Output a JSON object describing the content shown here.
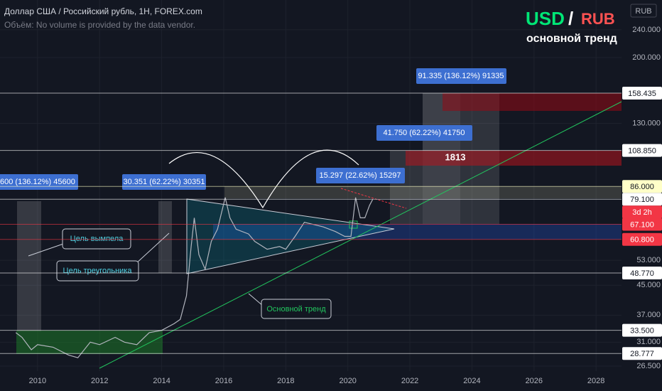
{
  "header": {
    "title": "Доллар США / Российский рубль, 1H, FOREX.com",
    "subtitle": "Объём: No volume is provided by the data vendor.",
    "axis_unit": "RUB"
  },
  "badge": {
    "base": "USD",
    "slash": "/",
    "quote": "RUB",
    "caption": "основной тренд"
  },
  "chart_data": {
    "type": "line",
    "log_scale": true,
    "color": "#b2b5be",
    "x": [
      2009.3,
      2009.5,
      2009.8,
      2010,
      2010.5,
      2011,
      2011.3,
      2011.7,
      2012,
      2012.5,
      2012.8,
      2013.2,
      2013.6,
      2014,
      2014.4,
      2014.6,
      2014.8,
      2014.95,
      2015.05,
      2015.2,
      2015.4,
      2015.6,
      2015.8,
      2016.05,
      2016.2,
      2016.4,
      2016.8,
      2017.0,
      2017.4,
      2017.8,
      2018.0,
      2018.3,
      2018.6,
      2018.9,
      2019.2,
      2019.6,
      2019.9,
      2020.1,
      2020.25,
      2020.4,
      2020.55,
      2020.7,
      2020.8
    ],
    "values": [
      33,
      32,
      29.5,
      30.5,
      30,
      28.5,
      28,
      31,
      30.5,
      32,
      31,
      30.5,
      33,
      33.5,
      35,
      36,
      42,
      58,
      70,
      55,
      50,
      60,
      65,
      80,
      70,
      65,
      63,
      60,
      57,
      58,
      57,
      62,
      68,
      67,
      66,
      64,
      62,
      62,
      80,
      70,
      70,
      76,
      79
    ],
    "xlim": [
      2008.79,
      2028.82
    ],
    "ylim": [
      25.65,
      291.7
    ],
    "xticks": [
      2010,
      2012,
      2014,
      2016,
      2018,
      2020,
      2022,
      2024,
      2026,
      2028
    ],
    "yticks": [
      {
        "value": 240,
        "label": "240.000"
      },
      {
        "value": 200,
        "label": "200.000"
      },
      {
        "value": 130,
        "label": "130.000"
      },
      {
        "value": 53,
        "label": "53.000"
      },
      {
        "value": 45,
        "label": "45.000"
      },
      {
        "value": 37,
        "label": "37.000"
      },
      {
        "value": 31,
        "label": "31.000"
      },
      {
        "value": 26.5,
        "label": "26.500"
      }
    ],
    "levels": [
      {
        "value": 158.435,
        "label": "158.435",
        "color": "#ffffff"
      },
      {
        "value": 108.85,
        "label": "108.850",
        "color": "#ffffff"
      },
      {
        "value": 86,
        "label": "86.000",
        "color": "#ffffc8"
      },
      {
        "value": 79.1,
        "label": "79.100",
        "color": "#ffffff"
      },
      {
        "value": 67.1,
        "label": "67.100",
        "color": "#f23645"
      },
      {
        "value": 60.8,
        "label": "60.800",
        "color": "#f23645"
      },
      {
        "value": 48.77,
        "label": "48.770",
        "color": "#ffffff"
      },
      {
        "value": 33.5,
        "label": "33.500",
        "color": "#ffffff"
      },
      {
        "value": 28.777,
        "label": "28.777",
        "color": "#ffffff"
      }
    ],
    "countdown": "3d 2h"
  },
  "annotations": {
    "m1": "91.335 (136.12%) 91335",
    "m2": "41.750 (62.22%) 41750",
    "m3": "15.297 (22.62%) 15297",
    "m4": "30.351 (62.22%) 30351",
    "m5": "600 (136.12%) 45600",
    "target_pennant": "Цель вымпела",
    "target_triangle": "Цель треугольника",
    "main_trend": "Основной тренд",
    "bars": "1813"
  }
}
